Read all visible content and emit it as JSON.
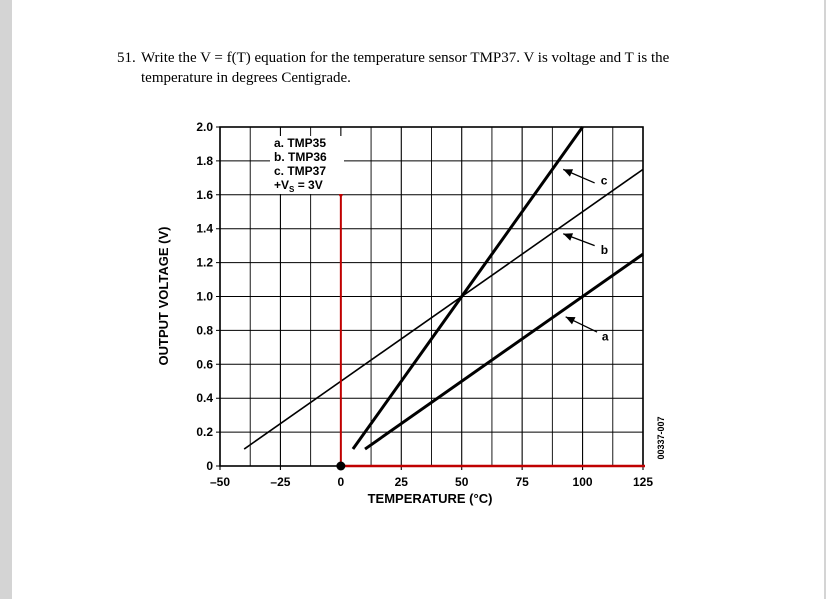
{
  "question": {
    "number": "51.",
    "line1": "Write the V = f(T) equation for the temperature sensor TMP37.  V is voltage and T is the",
    "line2": "temperature in degrees Centigrade."
  },
  "chart_data": {
    "type": "line",
    "xlabel": "TEMPERATURE (°C)",
    "ylabel": "OUTPUT VOLTAGE (V)",
    "xlim": [
      -50,
      125
    ],
    "ylim": [
      0,
      2.0
    ],
    "x_ticks": [
      "–50",
      "–25",
      "0",
      "25",
      "50",
      "75",
      "100",
      "125"
    ],
    "y_ticks": [
      "0",
      "0.2",
      "0.4",
      "0.6",
      "0.8",
      "1.0",
      "1.2",
      "1.4",
      "1.6",
      "1.8",
      "2.0"
    ],
    "grid": true,
    "legend": {
      "items": [
        "a. TMP35",
        "b. TMP36",
        "c. TMP37"
      ],
      "supply": "+V",
      "supply_sub": "S",
      "supply_value": " = 3V"
    },
    "series": [
      {
        "name": "a",
        "x": [
          10,
          125
        ],
        "y": [
          0.1,
          1.25
        ]
      },
      {
        "name": "b",
        "x": [
          -40,
          125
        ],
        "y": [
          0.1,
          1.75
        ]
      },
      {
        "name": "c",
        "x": [
          5,
          100
        ],
        "y": [
          0.1,
          2.0
        ]
      }
    ],
    "figure_code": "00337-007",
    "annotation_color": "#c00000"
  }
}
